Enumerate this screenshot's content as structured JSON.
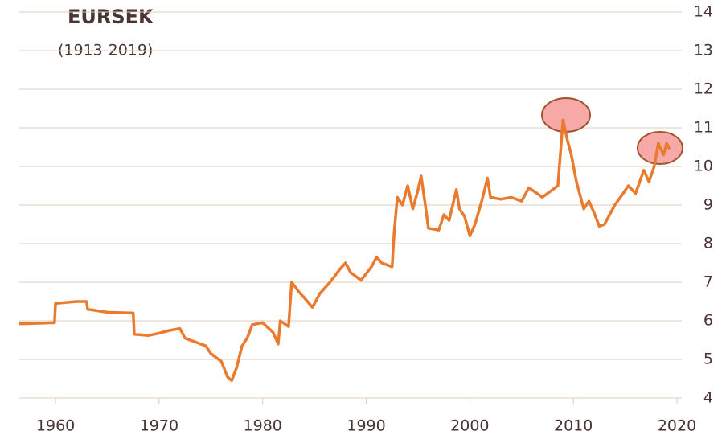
{
  "chart_data": {
    "type": "line",
    "title": "EURSEK",
    "subtitle": "(1913-2019)",
    "color": "#ea7a2e",
    "grid": true,
    "x": [
      1956.5,
      1959.9,
      1960,
      1962,
      1963,
      1963.1,
      1965,
      1967.5,
      1967.6,
      1969,
      1970,
      1971,
      1972,
      1972.5,
      1973.5,
      1974.5,
      1975,
      1976,
      1976.6,
      1977,
      1977.5,
      1978,
      1978.5,
      1979,
      1980,
      1981,
      1981.5,
      1981.7,
      1982.5,
      1982.8,
      1983.5,
      1984,
      1984.8,
      1985.5,
      1986.5,
      1987.5,
      1988,
      1988.5,
      1989.5,
      1990.5,
      1991,
      1991.5,
      1992.5,
      1992.7,
      1993,
      1993.5,
      1994,
      1994.5,
      1995,
      1995.3,
      1995.7,
      1996,
      1997,
      1997.5,
      1998,
      1998.7,
      1999,
      1999.5,
      2000,
      2000.5,
      2001.2,
      2001.7,
      2002,
      2003,
      2004,
      2005,
      2005.7,
      2006.5,
      2007,
      2008,
      2008.5,
      2009,
      2009.4,
      2009.8,
      2010.3,
      2011,
      2011.5,
      2012,
      2012.5,
      2013,
      2014,
      2014.8,
      2015.3,
      2016,
      2016.8,
      2017.3,
      2017.8,
      2018.2,
      2018.7,
      2019,
      2019.3
    ],
    "values": [
      5.92,
      5.95,
      6.45,
      6.5,
      6.5,
      6.3,
      6.22,
      6.2,
      5.65,
      5.62,
      5.68,
      5.75,
      5.8,
      5.55,
      5.45,
      5.35,
      5.15,
      4.95,
      4.55,
      4.45,
      4.8,
      5.35,
      5.55,
      5.9,
      5.95,
      5.7,
      5.4,
      6.0,
      5.85,
      7.0,
      6.75,
      6.6,
      6.35,
      6.7,
      7.0,
      7.35,
      7.5,
      7.25,
      7.05,
      7.4,
      7.65,
      7.5,
      7.4,
      8.3,
      9.2,
      9.0,
      9.5,
      8.9,
      9.4,
      9.75,
      9.0,
      8.4,
      8.35,
      8.75,
      8.6,
      9.4,
      8.9,
      8.7,
      8.2,
      8.5,
      9.15,
      9.7,
      9.2,
      9.15,
      9.2,
      9.1,
      9.45,
      9.3,
      9.2,
      9.4,
      9.5,
      11.2,
      10.7,
      10.3,
      9.6,
      8.9,
      9.1,
      8.8,
      8.45,
      8.5,
      9.0,
      9.3,
      9.5,
      9.3,
      9.9,
      9.6,
      10.0,
      10.6,
      10.3,
      10.6,
      10.45
    ],
    "xlim": [
      1956.5,
      2020
    ],
    "xticks": [
      1960,
      1970,
      1980,
      1990,
      2000,
      2010,
      2020
    ],
    "ylim": [
      4,
      14
    ],
    "yticks": [
      4,
      5,
      6,
      7,
      8,
      9,
      10,
      11,
      12,
      13,
      14
    ]
  }
}
